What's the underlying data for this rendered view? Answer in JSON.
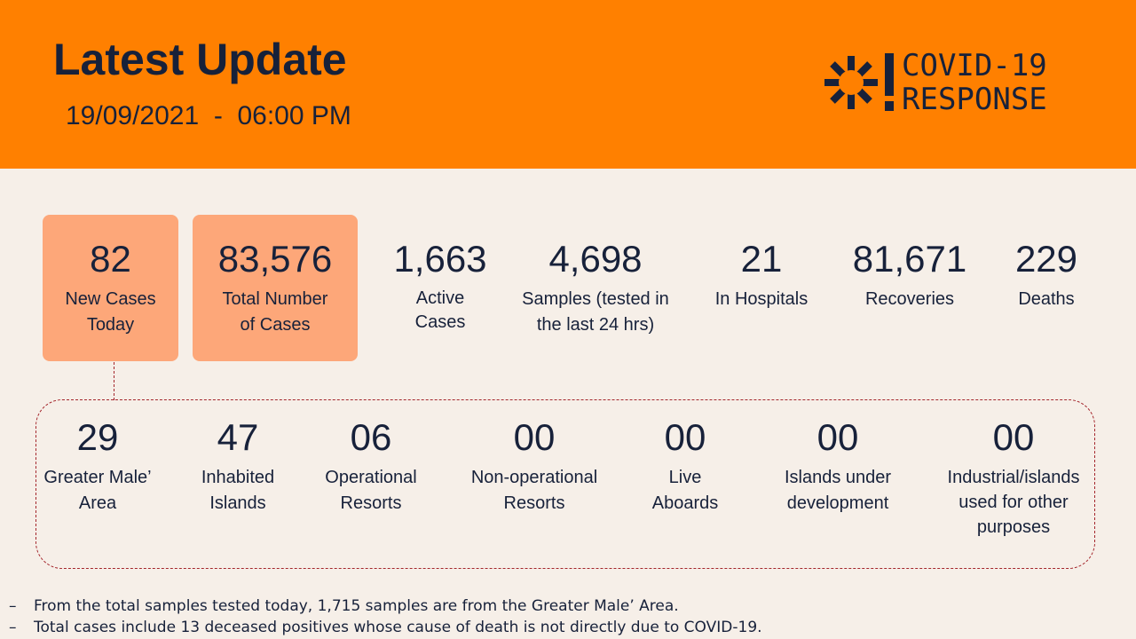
{
  "header": {
    "title": "Latest Update",
    "date": "19/09/2021  -  06:00 PM",
    "logo_line1": "COVID-19",
    "logo_line2": "RESPONSE"
  },
  "stats": [
    {
      "value": "82",
      "label1": "New Cases",
      "label2": "Today"
    },
    {
      "value": "83,576",
      "label1": "Total Number",
      "label2": "of Cases"
    },
    {
      "value": "1,663",
      "label1": "Active",
      "label2": "Cases"
    },
    {
      "value": "4,698",
      "label1": "Samples (tested in",
      "label2": "the last 24 hrs)"
    },
    {
      "value": "21",
      "label1": "In Hospitals",
      "label2": ""
    },
    {
      "value": "81,671",
      "label1": "Recoveries",
      "label2": ""
    },
    {
      "value": "229",
      "label1": "Deaths",
      "label2": ""
    }
  ],
  "breakdown": [
    {
      "value": "29",
      "label1": "Greater Male’",
      "label2": "Area",
      "label3": ""
    },
    {
      "value": "47",
      "label1": "Inhabited",
      "label2": "Islands",
      "label3": ""
    },
    {
      "value": "06",
      "label1": "Operational",
      "label2": "Resorts",
      "label3": ""
    },
    {
      "value": "00",
      "label1": "Non-operational",
      "label2": "Resorts",
      "label3": ""
    },
    {
      "value": "00",
      "label1": "Live",
      "label2": "Aboards",
      "label3": ""
    },
    {
      "value": "00",
      "label1": "Islands under",
      "label2": "development",
      "label3": ""
    },
    {
      "value": "00",
      "label1": "Industrial/islands",
      "label2": "used for other",
      "label3": "purposes"
    }
  ],
  "notes": [
    "From the total samples tested today, 1,715 samples are from the Greater Male’ Area.",
    "Total cases include 13 deceased positives whose cause of death is not directly due to COVID-19."
  ],
  "colors": {
    "orange": "#ff8000",
    "highlight": "#fda779",
    "navy": "#17213a",
    "dash": "#a4262c"
  }
}
